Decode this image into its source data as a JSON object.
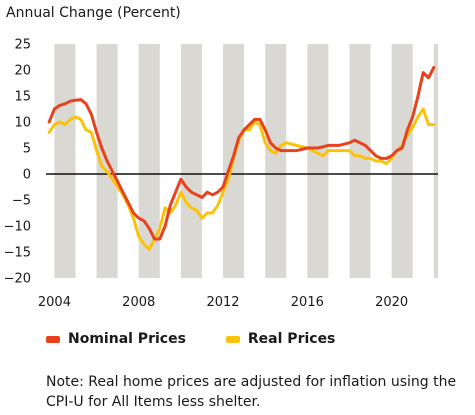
{
  "chart_data": {
    "type": "line",
    "ylabel": "Annual Change (Percent)",
    "xlim": [
      2003.6,
      2022.2
    ],
    "ylim": [
      -20,
      25
    ],
    "yticks": [
      -20,
      -15,
      -10,
      -5,
      0,
      5,
      10,
      15,
      20,
      25
    ],
    "xticks": [
      2004,
      2008,
      2012,
      2016,
      2020
    ],
    "grid": "alternating vertical bands by year",
    "legend_position": "bottom-left",
    "series": [
      {
        "name": "Nominal Prices",
        "color": "#e8411c",
        "points": [
          [
            2003.75,
            10.0
          ],
          [
            2004.0,
            12.5
          ],
          [
            2004.25,
            13.2
          ],
          [
            2004.5,
            13.5
          ],
          [
            2004.75,
            14.0
          ],
          [
            2005.0,
            14.2
          ],
          [
            2005.25,
            14.3
          ],
          [
            2005.5,
            13.5
          ],
          [
            2005.75,
            11.5
          ],
          [
            2006.0,
            8.0
          ],
          [
            2006.25,
            5.0
          ],
          [
            2006.5,
            2.5
          ],
          [
            2006.75,
            0.5
          ],
          [
            2007.0,
            -1.5
          ],
          [
            2007.25,
            -3.5
          ],
          [
            2007.5,
            -5.5
          ],
          [
            2007.75,
            -7.5
          ],
          [
            2008.0,
            -8.5
          ],
          [
            2008.25,
            -9.0
          ],
          [
            2008.5,
            -10.5
          ],
          [
            2008.75,
            -12.5
          ],
          [
            2009.0,
            -12.5
          ],
          [
            2009.25,
            -10.0
          ],
          [
            2009.5,
            -6.0
          ],
          [
            2009.75,
            -3.5
          ],
          [
            2010.0,
            -1.0
          ],
          [
            2010.25,
            -2.5
          ],
          [
            2010.5,
            -3.5
          ],
          [
            2010.75,
            -4.0
          ],
          [
            2011.0,
            -4.5
          ],
          [
            2011.25,
            -3.5
          ],
          [
            2011.5,
            -4.0
          ],
          [
            2011.75,
            -3.5
          ],
          [
            2012.0,
            -2.5
          ],
          [
            2012.25,
            0.5
          ],
          [
            2012.5,
            3.5
          ],
          [
            2012.75,
            7.0
          ],
          [
            2013.0,
            8.5
          ],
          [
            2013.25,
            9.5
          ],
          [
            2013.5,
            10.5
          ],
          [
            2013.75,
            10.5
          ],
          [
            2014.0,
            8.5
          ],
          [
            2014.25,
            6.0
          ],
          [
            2014.5,
            5.0
          ],
          [
            2014.75,
            4.5
          ],
          [
            2015.0,
            4.5
          ],
          [
            2015.5,
            4.5
          ],
          [
            2016.0,
            5.0
          ],
          [
            2016.5,
            5.0
          ],
          [
            2017.0,
            5.5
          ],
          [
            2017.5,
            5.5
          ],
          [
            2018.0,
            6.0
          ],
          [
            2018.25,
            6.5
          ],
          [
            2018.5,
            6.0
          ],
          [
            2018.75,
            5.5
          ],
          [
            2019.0,
            4.5
          ],
          [
            2019.25,
            3.5
          ],
          [
            2019.5,
            3.0
          ],
          [
            2019.75,
            3.0
          ],
          [
            2020.0,
            3.5
          ],
          [
            2020.25,
            4.5
          ],
          [
            2020.5,
            5.0
          ],
          [
            2020.75,
            8.5
          ],
          [
            2021.0,
            11.0
          ],
          [
            2021.25,
            15.0
          ],
          [
            2021.5,
            19.5
          ],
          [
            2021.75,
            18.5
          ],
          [
            2022.0,
            20.5
          ]
        ]
      },
      {
        "name": "Real Prices",
        "color": "#fcc20a",
        "points": [
          [
            2003.75,
            8.0
          ],
          [
            2004.0,
            9.5
          ],
          [
            2004.25,
            10.0
          ],
          [
            2004.5,
            9.5
          ],
          [
            2004.75,
            10.5
          ],
          [
            2005.0,
            11.0
          ],
          [
            2005.25,
            10.5
          ],
          [
            2005.5,
            8.5
          ],
          [
            2005.75,
            8.0
          ],
          [
            2006.0,
            4.5
          ],
          [
            2006.25,
            1.5
          ],
          [
            2006.5,
            0.5
          ],
          [
            2006.75,
            -1.0
          ],
          [
            2007.0,
            -2.5
          ],
          [
            2007.25,
            -4.0
          ],
          [
            2007.5,
            -6.0
          ],
          [
            2007.75,
            -8.5
          ],
          [
            2008.0,
            -12.0
          ],
          [
            2008.25,
            -13.5
          ],
          [
            2008.5,
            -14.5
          ],
          [
            2008.75,
            -12.5
          ],
          [
            2009.0,
            -10.5
          ],
          [
            2009.25,
            -6.5
          ],
          [
            2009.5,
            -7.5
          ],
          [
            2009.75,
            -6.0
          ],
          [
            2010.0,
            -3.5
          ],
          [
            2010.25,
            -5.5
          ],
          [
            2010.5,
            -6.5
          ],
          [
            2010.75,
            -7.0
          ],
          [
            2011.0,
            -8.5
          ],
          [
            2011.25,
            -7.5
          ],
          [
            2011.5,
            -7.5
          ],
          [
            2011.75,
            -6.0
          ],
          [
            2012.0,
            -3.5
          ],
          [
            2012.25,
            -1.0
          ],
          [
            2012.5,
            3.0
          ],
          [
            2012.75,
            6.5
          ],
          [
            2013.0,
            8.5
          ],
          [
            2013.25,
            8.5
          ],
          [
            2013.5,
            10.0
          ],
          [
            2013.75,
            9.5
          ],
          [
            2014.0,
            6.0
          ],
          [
            2014.25,
            4.5
          ],
          [
            2014.5,
            4.0
          ],
          [
            2014.75,
            5.5
          ],
          [
            2015.0,
            6.0
          ],
          [
            2015.5,
            5.5
          ],
          [
            2016.0,
            5.0
          ],
          [
            2016.25,
            4.5
          ],
          [
            2016.5,
            4.0
          ],
          [
            2016.75,
            3.5
          ],
          [
            2017.0,
            4.5
          ],
          [
            2017.5,
            4.5
          ],
          [
            2018.0,
            4.5
          ],
          [
            2018.25,
            3.5
          ],
          [
            2018.5,
            3.5
          ],
          [
            2018.75,
            3.0
          ],
          [
            2019.0,
            3.0
          ],
          [
            2019.25,
            2.5
          ],
          [
            2019.5,
            2.5
          ],
          [
            2019.75,
            2.0
          ],
          [
            2020.0,
            3.0
          ],
          [
            2020.25,
            4.5
          ],
          [
            2020.5,
            5.5
          ],
          [
            2020.75,
            7.5
          ],
          [
            2021.0,
            9.0
          ],
          [
            2021.25,
            11.0
          ],
          [
            2021.5,
            12.5
          ],
          [
            2021.75,
            9.5
          ],
          [
            2022.0,
            9.5
          ]
        ]
      }
    ]
  },
  "legend": {
    "nominal_label": "Nominal Prices",
    "real_label": "Real Prices"
  },
  "note": "Note: Real home prices are adjusted for inflation using the CPI-U for All Items less shelter."
}
